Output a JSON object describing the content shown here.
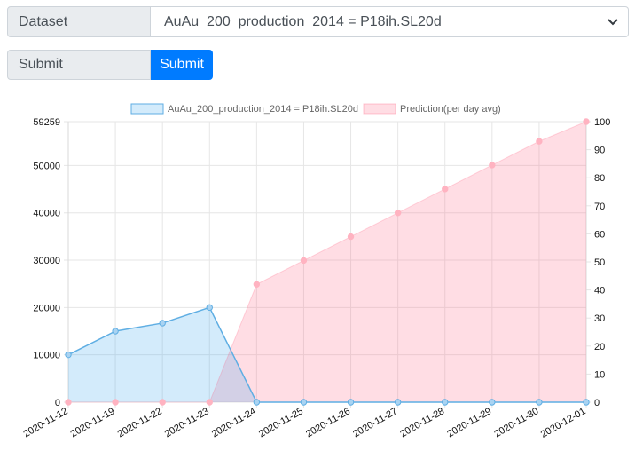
{
  "form": {
    "dataset_label": "Dataset",
    "dataset_selected": "AuAu_200_production_2014 = P18ih.SL20d",
    "submit_label": "Submit",
    "submit_button": "Submit"
  },
  "colors": {
    "series1_line": "#5faee3",
    "series1_fill": "rgba(54,162,235,0.22)",
    "series2_fill": "rgba(255,99,132,0.22)",
    "series2_point": "#ffb3c1",
    "button": "#007bff"
  },
  "chart_data": {
    "type": "area",
    "categories": [
      "2020-11-12",
      "2020-11-19",
      "2020-11-22",
      "2020-11-23",
      "2020-11-24",
      "2020-11-25",
      "2020-11-26",
      "2020-11-27",
      "2020-11-28",
      "2020-11-29",
      "2020-11-30",
      "2020-12-01"
    ],
    "series": [
      {
        "name": "AuAu_200_production_2014 = P18ih.SL20d",
        "axis": "left",
        "values": [
          10000,
          15000,
          16700,
          20000,
          0,
          0,
          0,
          0,
          0,
          0,
          0,
          0
        ]
      },
      {
        "name": "Prediction(per day avg)",
        "axis": "right",
        "values": [
          0,
          0,
          0,
          0,
          42,
          50.5,
          59,
          67.5,
          76,
          84.5,
          93,
          100
        ]
      }
    ],
    "y_left": {
      "min": 0,
      "max": 59259,
      "ticks": [
        0,
        10000,
        20000,
        30000,
        40000,
        50000,
        59259
      ]
    },
    "y_right": {
      "min": 0,
      "max": 100,
      "ticks": [
        0,
        10,
        20,
        30,
        40,
        50,
        60,
        70,
        80,
        90,
        100
      ]
    },
    "grid": true,
    "legend_position": "top"
  }
}
